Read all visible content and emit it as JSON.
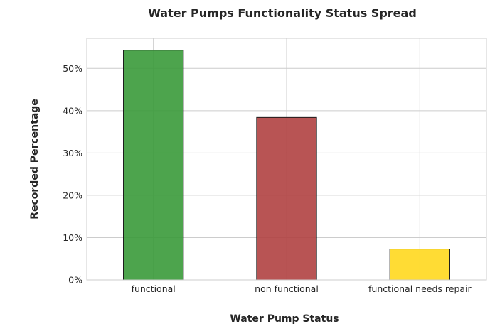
{
  "chart_data": {
    "type": "bar",
    "title": "Water Pumps Functionality Status Spread",
    "xlabel": "Water Pump Status",
    "ylabel": "Recorded Percentage",
    "categories": [
      "functional",
      "non functional",
      "functional needs repair"
    ],
    "values": [
      54.3,
      38.4,
      7.3
    ],
    "colors": [
      "#3a9a3a",
      "#b04141",
      "#ffd81e"
    ],
    "ylim": [
      0,
      57.1
    ],
    "yticks": [
      0,
      10,
      20,
      30,
      40,
      50
    ],
    "ytick_labels": [
      "0%",
      "10%",
      "20%",
      "30%",
      "40%",
      "50%"
    ],
    "grid": true,
    "legend": "none"
  }
}
